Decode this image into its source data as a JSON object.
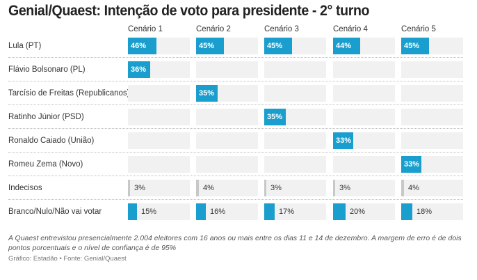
{
  "colors": {
    "bar": "#1a9ecd",
    "bar_muted": "#c8c8c8",
    "cell_bg": "#f1f1f1"
  },
  "chart_data": {
    "type": "bar",
    "title": "Genial/Quaest: Intenção de voto para presidente - 2° turno",
    "categories": [
      "Cenário 1",
      "Cenário 2",
      "Cenário 3",
      "Cenário 4",
      "Cenário 5"
    ],
    "unit": "%",
    "xlim": [
      0,
      100
    ],
    "series": [
      {
        "name": "Lula (PT)",
        "style": "blue",
        "values": [
          46,
          45,
          45,
          44,
          45
        ]
      },
      {
        "name": "Flávio Bolsonaro (PL)",
        "style": "blue",
        "values": [
          36,
          null,
          null,
          null,
          null
        ]
      },
      {
        "name": "Tarcísio de Freitas (Republicanos)",
        "style": "blue",
        "values": [
          null,
          35,
          null,
          null,
          null
        ]
      },
      {
        "name": "Ratinho Júnior (PSD)",
        "style": "blue",
        "values": [
          null,
          null,
          35,
          null,
          null
        ]
      },
      {
        "name": "Ronaldo Caiado (União)",
        "style": "blue",
        "values": [
          null,
          null,
          null,
          33,
          null
        ]
      },
      {
        "name": "Romeu Zema (Novo)",
        "style": "blue",
        "values": [
          null,
          null,
          null,
          null,
          33
        ]
      },
      {
        "name": "Indecisos",
        "style": "gray",
        "values": [
          3,
          4,
          3,
          3,
          4
        ]
      },
      {
        "name": "Branco/Nulo/Não vai votar",
        "style": "blue",
        "values": [
          15,
          16,
          17,
          20,
          18
        ]
      }
    ],
    "note": "A Quaest entrevistou presencialmente 2.004 eleitores com 16 anos ou mais entre os dias 11 e 14 de dezembro. A margem de erro é de dois pontos porcentuais e o nível de confiança é de 95%",
    "source": "Gráfico: Estadão • Fonte: Genial/Quaest"
  }
}
